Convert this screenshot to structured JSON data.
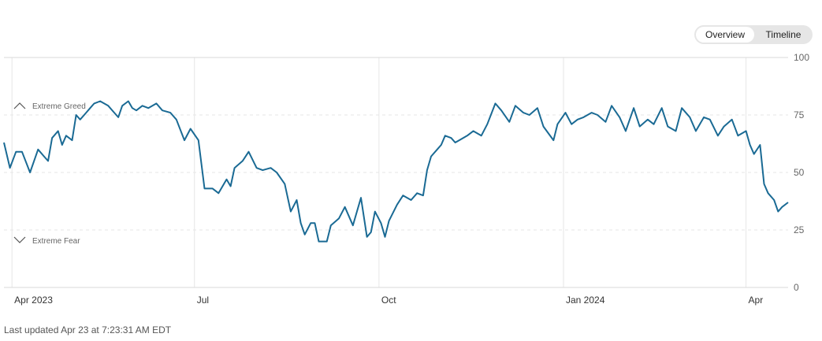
{
  "toggle": {
    "overview_label": "Overview",
    "timeline_label": "Timeline"
  },
  "footer": {
    "last_updated": "Last updated Apr 23 at 7:23:31 AM EDT"
  },
  "colors": {
    "line": "#1a6a94",
    "grid": "#e6e6e6",
    "background": "#ffffff"
  },
  "chart_data": {
    "type": "line",
    "title": "",
    "xlabel": "",
    "ylabel": "",
    "ylim": [
      0,
      100
    ],
    "yticks": [
      0,
      25,
      50,
      75,
      100
    ],
    "y_axis_position": "right",
    "grid": "horizontal dashed",
    "x_ticks": [
      {
        "label": "Apr 2023",
        "date": "2023-04-01"
      },
      {
        "label": "Jul",
        "date": "2023-07-01"
      },
      {
        "label": "Oct",
        "date": "2023-10-01"
      },
      {
        "label": "Jan 2024",
        "date": "2024-01-01"
      },
      {
        "label": "Apr",
        "date": "2024-04-01"
      }
    ],
    "annotations": [
      {
        "text": "Extreme Greed",
        "value": 79,
        "icon": "chevron-up-icon"
      },
      {
        "text": "Extreme Fear",
        "value": 21,
        "icon": "chevron-down-icon"
      }
    ],
    "series": [
      {
        "x": [
          "2023-03-28",
          "2023-03-31",
          "2023-04-03",
          "2023-04-06",
          "2023-04-10",
          "2023-04-12",
          "2023-04-14",
          "2023-04-17",
          "2023-04-19",
          "2023-04-21",
          "2023-04-24",
          "2023-04-26",
          "2023-04-28",
          "2023-05-01",
          "2023-05-03",
          "2023-05-05",
          "2023-05-08",
          "2023-05-10",
          "2023-05-12",
          "2023-05-15",
          "2023-05-17",
          "2023-05-19",
          "2023-05-22",
          "2023-05-24",
          "2023-05-26",
          "2023-05-29",
          "2023-05-31",
          "2023-06-02",
          "2023-06-05",
          "2023-06-08",
          "2023-06-12",
          "2023-06-15",
          "2023-06-19",
          "2023-06-22",
          "2023-06-26",
          "2023-06-29",
          "2023-07-03",
          "2023-07-06",
          "2023-07-10",
          "2023-07-13",
          "2023-07-17",
          "2023-07-19",
          "2023-07-21",
          "2023-07-25",
          "2023-07-28",
          "2023-08-01",
          "2023-08-04",
          "2023-08-08",
          "2023-08-11",
          "2023-08-15",
          "2023-08-18",
          "2023-08-21",
          "2023-08-23",
          "2023-08-25",
          "2023-08-28",
          "2023-08-30",
          "2023-09-01",
          "2023-09-05",
          "2023-09-07",
          "2023-09-11",
          "2023-09-14",
          "2023-09-18",
          "2023-09-20",
          "2023-09-22",
          "2023-09-25",
          "2023-09-27",
          "2023-09-29",
          "2023-10-02",
          "2023-10-04",
          "2023-10-06",
          "2023-10-10",
          "2023-10-13",
          "2023-10-17",
          "2023-10-20",
          "2023-10-23",
          "2023-10-25",
          "2023-10-27",
          "2023-10-30",
          "2023-11-01",
          "2023-11-03",
          "2023-11-06",
          "2023-11-08",
          "2023-11-10",
          "2023-11-14",
          "2023-11-17",
          "2023-11-21",
          "2023-11-24",
          "2023-11-28",
          "2023-12-01",
          "2023-12-05",
          "2023-12-08",
          "2023-12-12",
          "2023-12-15",
          "2023-12-19",
          "2023-12-22",
          "2023-12-27",
          "2023-12-29",
          "2024-01-02",
          "2024-01-05",
          "2024-01-08",
          "2024-01-11",
          "2024-01-15",
          "2024-01-18",
          "2024-01-22",
          "2024-01-25",
          "2024-01-29",
          "2024-02-01",
          "2024-02-05",
          "2024-02-08",
          "2024-02-12",
          "2024-02-15",
          "2024-02-19",
          "2024-02-22",
          "2024-02-26",
          "2024-02-29",
          "2024-03-04",
          "2024-03-07",
          "2024-03-11",
          "2024-03-14",
          "2024-03-18",
          "2024-03-21",
          "2024-03-25",
          "2024-03-28",
          "2024-04-01",
          "2024-04-03",
          "2024-04-05",
          "2024-04-08",
          "2024-04-10",
          "2024-04-12",
          "2024-04-15",
          "2024-04-17",
          "2024-04-19",
          "2024-04-22"
        ],
        "values": [
          63,
          52,
          59,
          59,
          50,
          55,
          60,
          57,
          55,
          65,
          68,
          62,
          66,
          64,
          75,
          73,
          76,
          78,
          80,
          81,
          80,
          79,
          76,
          74,
          79,
          81,
          78,
          77,
          79,
          78,
          80,
          77,
          76,
          73,
          64,
          69,
          64,
          43,
          43,
          41,
          47,
          44,
          52,
          55,
          59,
          52,
          51,
          52,
          50,
          45,
          33,
          38,
          28,
          23,
          28,
          28,
          20,
          20,
          27,
          30,
          35,
          27,
          33,
          39,
          22,
          24,
          33,
          28,
          22,
          29,
          36,
          40,
          38,
          41,
          40,
          51,
          57,
          60,
          62,
          66,
          65,
          63,
          64,
          66,
          68,
          66,
          71,
          80,
          77,
          72,
          79,
          76,
          75,
          78,
          70,
          64,
          71,
          76,
          71,
          73,
          74,
          76,
          75,
          72,
          79,
          74,
          68,
          78,
          70,
          73,
          71,
          78,
          70,
          68,
          78,
          74,
          68,
          74,
          73,
          66,
          70,
          73,
          66,
          68,
          62,
          58,
          62,
          45,
          41,
          38,
          33,
          35,
          37
        ]
      }
    ]
  }
}
